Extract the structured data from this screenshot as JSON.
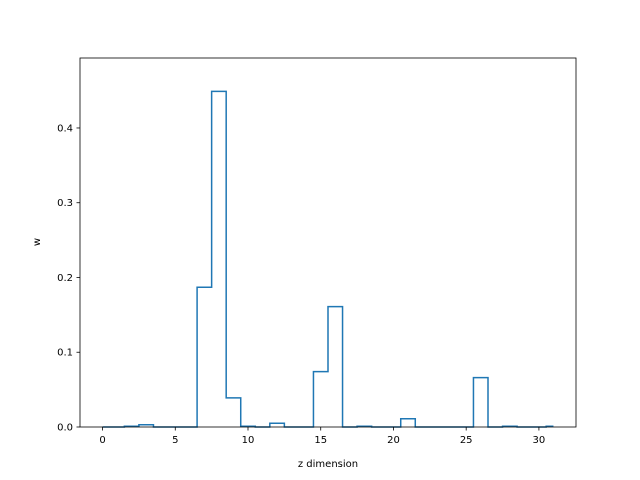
{
  "chart_data": {
    "type": "step",
    "title": "",
    "xlabel": "z dimension",
    "ylabel": "w",
    "xlim": [
      -1.55,
      32.55
    ],
    "ylim": [
      0,
      0.4936
    ],
    "xticks": [
      0,
      5,
      10,
      15,
      20,
      25,
      30
    ],
    "xtick_labels": [
      "0",
      "5",
      "10",
      "15",
      "20",
      "25",
      "30"
    ],
    "yticks": [
      0.0,
      0.1,
      0.2,
      0.3,
      0.4
    ],
    "ytick_labels": [
      "0.0",
      "0.1",
      "0.2",
      "0.3",
      "0.4"
    ],
    "grid": false,
    "step_where": "mid",
    "x": [
      0,
      1,
      2,
      3,
      4,
      5,
      6,
      7,
      8,
      9,
      10,
      11,
      12,
      13,
      14,
      15,
      16,
      17,
      18,
      19,
      20,
      21,
      22,
      23,
      24,
      25,
      26,
      27,
      28,
      29,
      30,
      31
    ],
    "series": [
      {
        "color": "#1f77b4",
        "values": [
          0.0,
          0.0,
          0.001,
          0.003,
          0.0,
          0.0,
          0.0,
          0.187,
          0.449,
          0.039,
          0.001,
          0.0,
          0.005,
          0.0,
          0.0,
          0.074,
          0.161,
          0.0,
          0.001,
          0.0,
          0.0,
          0.011,
          0.0,
          0.0,
          0.0,
          0.0,
          0.066,
          0.0,
          0.001,
          0.0,
          0.0,
          0.001
        ]
      }
    ]
  }
}
